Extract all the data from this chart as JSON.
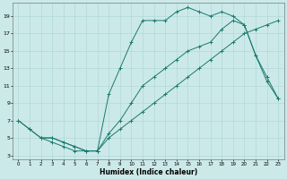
{
  "xlabel": "Humidex (Indice chaleur)",
  "xlim": [
    -0.5,
    23.5
  ],
  "ylim": [
    2.5,
    20.5
  ],
  "xticks": [
    0,
    1,
    2,
    3,
    4,
    5,
    6,
    7,
    8,
    9,
    10,
    11,
    12,
    13,
    14,
    15,
    16,
    17,
    18,
    19,
    20,
    21,
    22,
    23
  ],
  "yticks": [
    3,
    5,
    7,
    9,
    11,
    13,
    15,
    17,
    19
  ],
  "bg_color": "#cce9e9",
  "grid_color": "#aad4d4",
  "line_color": "#1a7a6e",
  "line1_x": [
    0,
    1,
    2,
    3,
    4,
    5,
    6,
    7,
    8,
    9,
    10,
    11,
    12,
    13,
    14,
    15,
    16,
    17,
    18,
    19,
    20,
    21,
    22,
    23
  ],
  "line1_y": [
    7,
    6,
    5,
    5,
    4.5,
    4,
    3.5,
    3.5,
    10,
    13,
    16,
    18.5,
    18.5,
    18.5,
    19.5,
    20.0,
    19.5,
    19.0,
    19.5,
    19.0,
    18.0,
    14.5,
    11.5,
    9.5
  ],
  "line2_x": [
    0,
    1,
    2,
    3,
    4,
    5,
    6,
    7,
    8,
    9,
    10,
    11,
    12,
    13,
    14,
    15,
    16,
    17,
    18,
    19,
    20,
    21,
    22,
    23
  ],
  "line2_y": [
    7,
    6,
    5,
    5,
    4.5,
    4,
    3.5,
    3.5,
    5,
    6,
    7,
    8,
    9,
    10,
    11,
    12,
    13,
    14,
    15,
    16,
    17,
    17.5,
    18,
    18.5
  ],
  "line3_x": [
    2,
    3,
    4,
    5,
    6,
    7,
    8,
    9,
    10,
    11,
    12,
    13,
    14,
    15,
    16,
    17,
    18,
    19,
    20,
    21,
    22,
    23
  ],
  "line3_y": [
    5,
    4.5,
    4,
    3.5,
    3.5,
    3.5,
    5.5,
    7,
    9,
    11,
    12,
    13,
    14,
    15,
    15.5,
    16,
    17.5,
    18.5,
    18.0,
    14.5,
    12,
    9.5
  ]
}
